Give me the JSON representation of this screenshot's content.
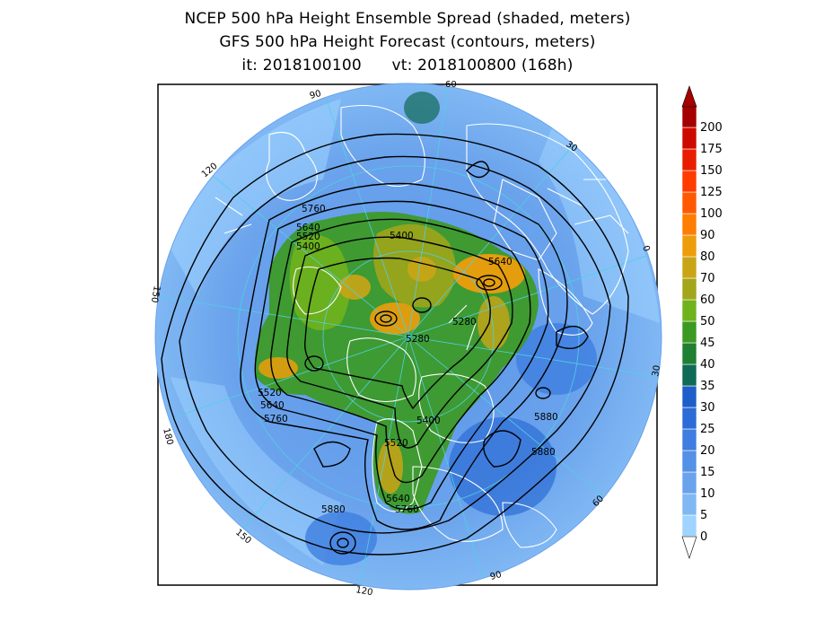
{
  "title": {
    "line1": "NCEP 500 hPa Height Ensemble Spread (shaded, meters)",
    "line2": "GFS 500 hPa Height Forecast (contours, meters)",
    "init_label": "it: 2018100100",
    "valid_label": "vt: 2018100800 (168h)"
  },
  "projection": "north-polar-stereographic",
  "longitude_labels": [
    "60",
    "30",
    "0",
    "30",
    "60",
    "90",
    "120",
    "150",
    "180",
    "150",
    "120",
    "90"
  ],
  "contour_labels": [
    "5760",
    "5640",
    "5520",
    "5400",
    "5400",
    "5640",
    "5280",
    "5280",
    "5520",
    "5640",
    "5760",
    "5400",
    "5520",
    "5880",
    "5880",
    "5640",
    "5760",
    "5880"
  ],
  "colorbar": {
    "levels": [
      "0",
      "5",
      "10",
      "15",
      "20",
      "25",
      "30",
      "35",
      "40",
      "45",
      "50",
      "60",
      "70",
      "80",
      "90",
      "100",
      "125",
      "150",
      "175",
      "200"
    ],
    "colors": [
      "#9fd4ff",
      "#80b8f4",
      "#6aa2ec",
      "#5490e6",
      "#3f7ee0",
      "#2c6cd6",
      "#1f5ec9",
      "#106a56",
      "#1f7f32",
      "#3c9a22",
      "#70b21c",
      "#a3a61a",
      "#c9a516",
      "#ed9d0c",
      "#ff7d00",
      "#ff5a00",
      "#ff3c00",
      "#e81d00",
      "#cc0a00",
      "#a50000"
    ]
  },
  "colors": {
    "ocean_spread_low": "#80b8f4",
    "ocean_spread_mid": "#3f7ee0",
    "spread_green": "#3c9a22",
    "spread_orange": "#ed9d0c",
    "contour": "#000000",
    "coastline": "#ffffff",
    "gridline": "#4fd0e4"
  }
}
